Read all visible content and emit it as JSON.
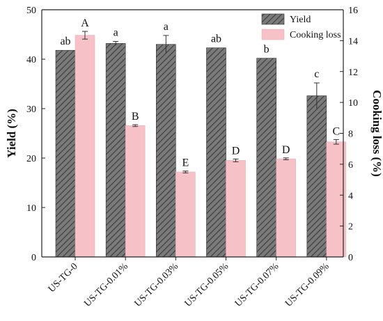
{
  "chart_data": {
    "type": "bar",
    "categories": [
      "US-TG-0",
      "US-TG-0.01%",
      "US-TG-0.03%",
      "US-TG-0.05%",
      "US-TG-0.07%",
      "US-TG-0.09%"
    ],
    "series": [
      {
        "name": "Yield",
        "axis": "left",
        "color": "#7a7a7a",
        "pattern": "diagonal-hatch",
        "values": [
          41.8,
          43.2,
          43.0,
          42.3,
          40.2,
          32.6
        ],
        "errors": [
          0.0,
          0.4,
          1.8,
          0.0,
          0.0,
          2.6
        ],
        "labels": [
          "ab",
          "a",
          "a",
          "ab",
          "b",
          "c"
        ]
      },
      {
        "name": "Cooking loss",
        "axis": "right",
        "color": "#f6c2c8",
        "values": [
          14.35,
          8.5,
          5.5,
          6.25,
          6.35,
          7.45
        ],
        "errors": [
          0.25,
          0.06,
          0.06,
          0.09,
          0.06,
          0.15
        ],
        "labels": [
          "A",
          "B",
          "E",
          "D",
          "D",
          "C"
        ]
      }
    ],
    "ylabel": "Yield (%)",
    "ylim": [
      0,
      50
    ],
    "yticks": [
      0,
      10,
      20,
      30,
      40,
      50
    ],
    "y2label": "Cooking loss (%)",
    "y2lim": [
      0,
      16
    ],
    "y2ticks": [
      0,
      2,
      4,
      6,
      8,
      10,
      12,
      14,
      16
    ],
    "legend_position": "top-right",
    "grid": false
  }
}
